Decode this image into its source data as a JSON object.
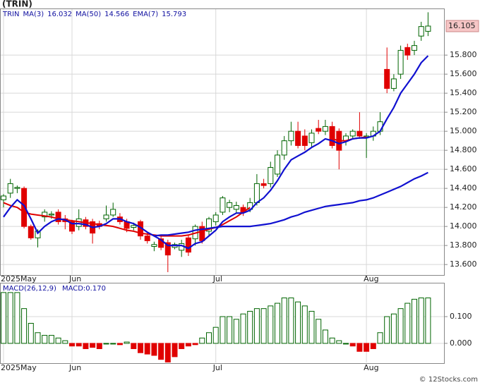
{
  "chart_data": [
    {
      "type": "candlestick",
      "title": "(TRIN)",
      "watermark": "© 12Stocks.com",
      "categories": [
        "2025May",
        null,
        null,
        null,
        null,
        null,
        null,
        null,
        null,
        null,
        "Jun",
        null,
        null,
        null,
        null,
        null,
        null,
        null,
        null,
        null,
        null,
        null,
        null,
        null,
        null,
        null,
        null,
        null,
        null,
        null,
        null,
        "Jul",
        null,
        null,
        null,
        null,
        null,
        null,
        null,
        null,
        null,
        null,
        null,
        null,
        null,
        null,
        null,
        null,
        null,
        null,
        null,
        null,
        null,
        "Aug",
        null,
        null,
        null,
        null,
        null,
        null,
        null,
        null,
        null
      ],
      "series": [
        {
          "name": "TRIN",
          "open": [
            14.28,
            14.35,
            14.4,
            14.4,
            14.0,
            13.88,
            14.1,
            14.12,
            14.15,
            14.08,
            14.05,
            14.0,
            14.07,
            14.05,
            14.03,
            14.08,
            14.12,
            14.1,
            14.05,
            13.99,
            14.05,
            13.9,
            13.79,
            13.87,
            13.83,
            13.78,
            13.75,
            13.88,
            13.87,
            14.0,
            13.95,
            14.05,
            14.15,
            14.2,
            14.18,
            14.2,
            14.18,
            14.25,
            14.45,
            14.45,
            14.55,
            14.75,
            14.9,
            15.0,
            14.95,
            14.88,
            15.03,
            15.0,
            15.05,
            15.0,
            14.9,
            14.95,
            15.0,
            14.94,
            14.95,
            15.0,
            15.65,
            15.45,
            15.6,
            15.88,
            15.85,
            16.0,
            16.05
          ],
          "high": [
            14.34,
            14.5,
            14.43,
            14.42,
            14.02,
            13.97,
            14.18,
            14.16,
            14.18,
            14.12,
            14.07,
            14.18,
            14.1,
            14.08,
            14.06,
            14.22,
            14.25,
            14.14,
            14.08,
            14.04,
            14.07,
            13.94,
            13.84,
            13.9,
            13.86,
            13.83,
            13.86,
            13.91,
            14.02,
            14.05,
            14.1,
            14.15,
            14.32,
            14.28,
            14.26,
            14.23,
            14.3,
            14.55,
            14.5,
            14.68,
            14.8,
            14.95,
            15.1,
            15.1,
            15.02,
            15.02,
            15.12,
            15.12,
            15.1,
            15.03,
            14.98,
            15.02,
            15.2,
            14.98,
            15.05,
            15.2,
            15.88,
            15.6,
            15.9,
            15.92,
            15.95,
            16.15,
            16.25
          ],
          "low": [
            14.2,
            14.3,
            14.35,
            13.98,
            13.86,
            13.78,
            14.05,
            14.08,
            14.02,
            13.97,
            13.92,
            13.96,
            13.97,
            13.82,
            13.97,
            14.05,
            14.1,
            14.02,
            13.94,
            13.96,
            13.86,
            13.82,
            13.74,
            13.75,
            13.52,
            13.76,
            13.68,
            13.69,
            13.8,
            13.82,
            13.9,
            14.01,
            14.12,
            14.15,
            14.14,
            14.11,
            14.15,
            14.22,
            14.4,
            14.41,
            14.52,
            14.7,
            14.85,
            14.82,
            14.8,
            14.83,
            14.97,
            14.96,
            14.82,
            14.6,
            14.85,
            14.92,
            14.92,
            14.72,
            14.9,
            14.96,
            15.4,
            15.42,
            15.55,
            15.75,
            15.8,
            15.95,
            16.0
          ],
          "close": [
            14.32,
            14.45,
            14.41,
            14.0,
            13.88,
            13.95,
            14.15,
            14.13,
            14.05,
            14.05,
            13.95,
            14.08,
            14.0,
            13.93,
            14.0,
            14.12,
            14.18,
            14.05,
            13.98,
            14.01,
            13.9,
            13.85,
            13.81,
            13.78,
            13.7,
            13.81,
            13.82,
            13.73,
            14.0,
            13.85,
            14.08,
            14.12,
            14.3,
            14.25,
            14.22,
            14.15,
            14.25,
            14.45,
            14.43,
            14.62,
            14.75,
            14.9,
            15.0,
            14.85,
            14.85,
            14.98,
            15.0,
            15.05,
            14.85,
            14.8,
            14.95,
            15.0,
            14.95,
            14.95,
            15.0,
            15.1,
            15.45,
            15.55,
            15.85,
            15.8,
            15.9,
            16.1,
            16.105
          ]
        }
      ],
      "lines": [
        {
          "name": "MA(3)",
          "label": 16.032,
          "color": "#e00000",
          "values": [
            14.25,
            14.22,
            14.2,
            14.15,
            14.13,
            14.12,
            14.11,
            14.1,
            14.08,
            14.07,
            14.06,
            14.05,
            14.04,
            14.03,
            14.02,
            14.01,
            14.0,
            13.98,
            13.96,
            13.95,
            13.93,
            13.92,
            13.91,
            13.9,
            13.9,
            13.9,
            13.9,
            13.91,
            13.93,
            13.95,
            13.97,
            13.99,
            14.02,
            14.06,
            14.1,
            14.15,
            14.2,
            null,
            null,
            null,
            null,
            null,
            null,
            null,
            null,
            null,
            null,
            null,
            14.92,
            14.9,
            14.9,
            14.92,
            14.93,
            14.94,
            null,
            null,
            null,
            null,
            null,
            null,
            null,
            null,
            null
          ]
        },
        {
          "name": "MA(50)",
          "label": 14.566,
          "color": "#1010d0",
          "values": [
            null,
            null,
            null,
            null,
            null,
            null,
            null,
            null,
            null,
            null,
            null,
            null,
            null,
            null,
            null,
            null,
            null,
            null,
            null,
            null,
            null,
            null,
            13.9,
            13.91,
            13.91,
            13.92,
            13.93,
            13.94,
            13.96,
            13.97,
            13.98,
            13.99,
            14.0,
            14.0,
            14.0,
            14.0,
            14.0,
            14.01,
            14.02,
            14.03,
            14.05,
            14.07,
            14.1,
            14.12,
            14.15,
            14.17,
            14.19,
            14.21,
            14.22,
            14.23,
            14.24,
            14.25,
            14.27,
            14.28,
            14.3,
            14.33,
            14.36,
            14.39,
            14.42,
            14.46,
            14.5,
            14.53,
            14.566
          ]
        },
        {
          "name": "EMA(7)",
          "label": 15.793,
          "color": "#1010d0",
          "values": [
            14.1,
            14.2,
            14.28,
            14.22,
            14.08,
            13.93,
            14.0,
            14.05,
            14.08,
            14.07,
            14.03,
            14.03,
            14.02,
            13.99,
            14.0,
            14.03,
            14.08,
            14.08,
            14.05,
            14.03,
            13.99,
            13.94,
            13.9,
            13.86,
            13.8,
            13.8,
            13.8,
            13.77,
            13.82,
            13.84,
            13.9,
            13.96,
            14.05,
            14.1,
            14.14,
            14.14,
            14.17,
            14.25,
            14.3,
            14.38,
            14.48,
            14.6,
            14.7,
            14.74,
            14.78,
            14.83,
            14.87,
            14.92,
            14.9,
            14.87,
            14.89,
            14.92,
            14.93,
            14.93,
            14.95,
            15.0,
            15.13,
            15.25,
            15.4,
            15.5,
            15.6,
            15.72,
            15.793
          ]
        }
      ],
      "last_price": 16.105,
      "ylim": [
        13.49,
        16.29
      ],
      "yticks": [
        {
          "value": 13.6,
          "label": "13.600"
        },
        {
          "value": 13.8,
          "label": "13.800"
        },
        {
          "value": 14.0,
          "label": "14.000"
        },
        {
          "value": 14.2,
          "label": "14.200"
        },
        {
          "value": 14.4,
          "label": "14.400"
        },
        {
          "value": 14.6,
          "label": "14.600"
        },
        {
          "value": 14.8,
          "label": "14.800"
        },
        {
          "value": 15.0,
          "label": "15.000"
        },
        {
          "value": 15.2,
          "label": "15.200"
        },
        {
          "value": 15.4,
          "label": "15.400"
        },
        {
          "value": 15.6,
          "label": "15.600"
        },
        {
          "value": 15.8,
          "label": "15.800"
        }
      ],
      "grid": true
    },
    {
      "type": "bar",
      "name": "MACD(26,12,9)",
      "value_label": "MACD:0.170",
      "values": [
        0.19,
        0.19,
        0.19,
        0.13,
        0.075,
        0.04,
        0.03,
        0.03,
        0.02,
        0.01,
        -0.01,
        -0.01,
        -0.02,
        -0.015,
        -0.02,
        0.0,
        0.0,
        -0.005,
        0.005,
        -0.02,
        -0.035,
        -0.04,
        -0.045,
        -0.06,
        -0.07,
        -0.05,
        -0.02,
        -0.01,
        -0.005,
        0.02,
        0.04,
        0.06,
        0.1,
        0.1,
        0.09,
        0.11,
        0.12,
        0.13,
        0.13,
        0.14,
        0.15,
        0.17,
        0.17,
        0.155,
        0.14,
        0.12,
        0.09,
        0.05,
        0.02,
        0.01,
        0.0,
        -0.01,
        -0.03,
        -0.03,
        -0.02,
        0.04,
        0.1,
        0.11,
        0.13,
        0.15,
        0.165,
        0.17,
        0.17
      ],
      "up_color": "#006400",
      "down_color": "#e00000",
      "ylim": [
        -0.074,
        0.224
      ],
      "yticks": [
        {
          "value": 0.0,
          "label": "0.000"
        },
        {
          "value": 0.1,
          "label": "0.100"
        }
      ],
      "grid": true
    }
  ]
}
